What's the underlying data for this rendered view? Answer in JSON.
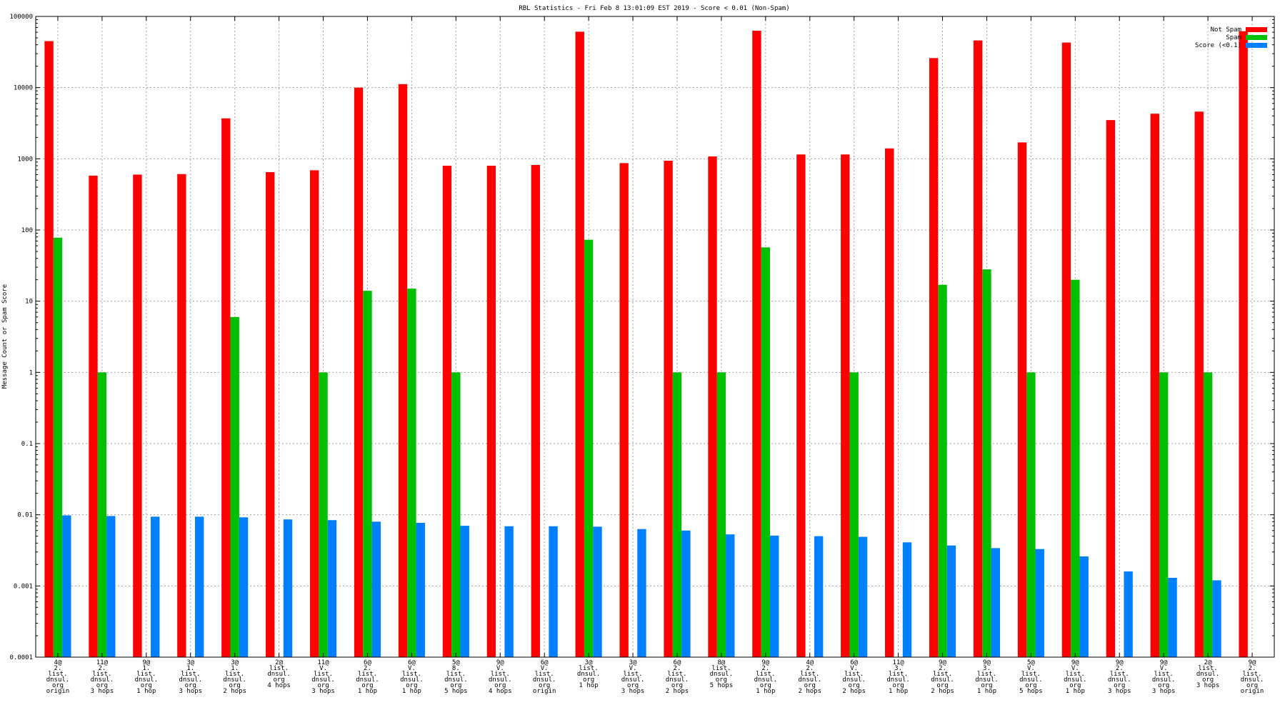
{
  "chart_data": {
    "type": "bar",
    "title": "RBL Statistics - Fri Feb  8 13:01:09 EST 2019 - Score < 0.01 (Non-Spam)",
    "xlabel": "",
    "ylabel": "Message Count or Spam Score",
    "yscale": "log",
    "ylim": [
      0.0001,
      100000
    ],
    "yticks": [
      "0.0001",
      "0.001",
      "0.01",
      "0.1",
      "1",
      "10",
      "100",
      "1000",
      "10000",
      "100000"
    ],
    "grid": true,
    "legend_position": "top-right",
    "categories": [
      [
        "4@",
        "2.",
        "list.",
        "dnsul.",
        "org",
        "origin"
      ],
      [
        "11@",
        "2.",
        "list.",
        "dnsul.",
        "org",
        "3 hops"
      ],
      [
        "9@",
        "1.",
        "list.",
        "dnsul.",
        "org",
        "1 hop"
      ],
      [
        "3@",
        "1.",
        "list.",
        "dnsul.",
        "org",
        "3 hops"
      ],
      [
        "3@",
        "1.",
        "list.",
        "dnsul.",
        "org",
        "2 hops"
      ],
      [
        "2@",
        "list.",
        "dnsul.",
        "org",
        "4 hops"
      ],
      [
        "11@",
        "V.",
        "list.",
        "dnsul.",
        "org",
        "3 hops"
      ],
      [
        "6@",
        "2.",
        "list.",
        "dnsul.",
        "org",
        "1 hop"
      ],
      [
        "6@",
        "V.",
        "list.",
        "dnsul.",
        "org",
        "1 hop"
      ],
      [
        "5@",
        "8.",
        "list.",
        "dnsul.",
        "org",
        "5 hops"
      ],
      [
        "9@",
        "V.",
        "list.",
        "dnsul.",
        "org",
        "4 hops"
      ],
      [
        "6@",
        "V.",
        "list.",
        "dnsul.",
        "org",
        "origin"
      ],
      [
        "3@",
        "list.",
        "dnsul.",
        "org",
        "1 hop"
      ],
      [
        "3@",
        "V.",
        "list.",
        "dnsul.",
        "org",
        "3 hops"
      ],
      [
        "6@",
        "2.",
        "list.",
        "dnsul.",
        "org",
        "2 hops"
      ],
      [
        "8@",
        "list.",
        "dnsul.",
        "org",
        "5 hops"
      ],
      [
        "9@",
        "2.",
        "list.",
        "dnsul.",
        "org",
        "1 hop"
      ],
      [
        "4@",
        "2.",
        "list.",
        "dnsul.",
        "org",
        "2 hops"
      ],
      [
        "6@",
        "V.",
        "list.",
        "dnsul.",
        "org",
        "2 hops"
      ],
      [
        "11@",
        "3.",
        "list.",
        "dnsul.",
        "org",
        "1 hop"
      ],
      [
        "9@",
        "2.",
        "list.",
        "dnsul.",
        "org",
        "2 hops"
      ],
      [
        "9@",
        "3.",
        "list.",
        "dnsul.",
        "org",
        "1 hop"
      ],
      [
        "5@",
        "V.",
        "list.",
        "dnsul.",
        "org",
        "5 hops"
      ],
      [
        "9@",
        "V.",
        "list.",
        "dnsul.",
        "org",
        "1 hop"
      ],
      [
        "9@",
        "2.",
        "list.",
        "dnsul.",
        "org",
        "3 hops"
      ],
      [
        "9@",
        "V.",
        "list.",
        "dnsul.",
        "org",
        "3 hops"
      ],
      [
        "2@",
        "list.",
        "dnsul.",
        "org",
        "3 hops"
      ],
      [
        "9@",
        "2.",
        "list.",
        "dnsul.",
        "org",
        "origin"
      ]
    ],
    "series": [
      {
        "name": "Not Spam",
        "color": "#ff0000",
        "values": [
          45000,
          580,
          600,
          610,
          3700,
          650,
          690,
          10000,
          11200,
          800,
          800,
          820,
          61000,
          870,
          940,
          1080,
          63000,
          1150,
          1150,
          1400,
          26000,
          46000,
          1700,
          43000,
          3500,
          4300,
          4600,
          62000
        ]
      },
      {
        "name": "Spam",
        "color": "#00c000",
        "values": [
          78,
          1,
          null,
          null,
          6,
          null,
          1,
          14,
          15,
          1,
          null,
          null,
          73,
          null,
          1,
          1,
          57,
          null,
          1,
          null,
          17,
          28,
          1,
          20,
          null,
          1,
          1,
          null
        ]
      },
      {
        "name": "Score (<0.1)",
        "color": "#0080ff",
        "values": [
          0.0098,
          0.0096,
          0.0094,
          0.0094,
          0.0092,
          0.0086,
          0.0084,
          0.008,
          0.0077,
          0.007,
          0.0069,
          0.0069,
          0.0068,
          0.0063,
          0.006,
          0.0053,
          0.0051,
          0.005,
          0.0049,
          0.0041,
          0.0037,
          0.0034,
          0.0033,
          0.0026,
          0.0016,
          0.0013,
          0.0012,
          null
        ]
      }
    ]
  }
}
